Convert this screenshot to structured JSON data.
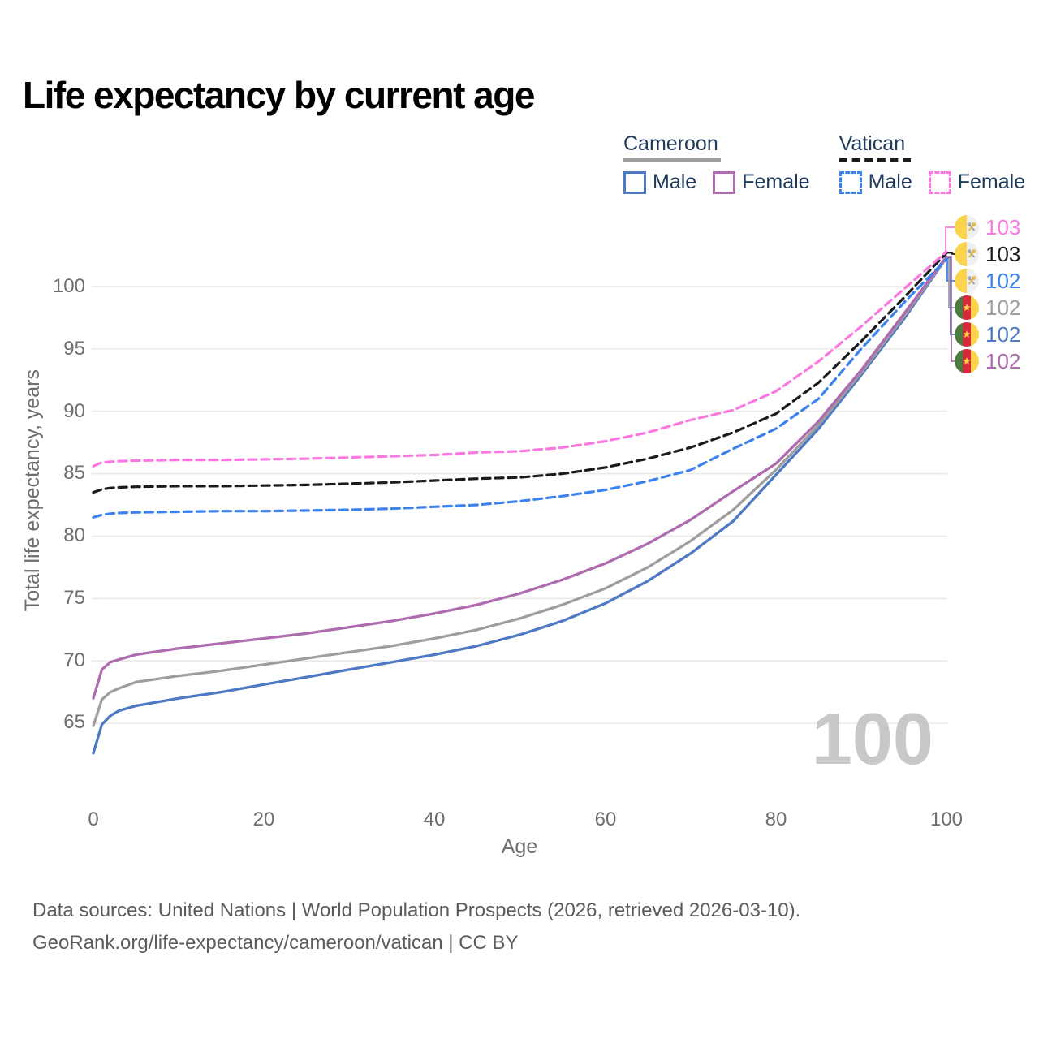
{
  "title": "Life expectancy by current age",
  "colors": {
    "title": "#1e3a5c",
    "text_dark": "#1e3a5c",
    "axis": "#6e6e6e",
    "grid": "#eaeaea",
    "footer": "#5c5c5c",
    "watermark": "#c8c8c8",
    "cameroon_male": "#4e79c4",
    "cameroon_female": "#af6bb0",
    "cameroon_combined": "#9e9e9e",
    "vatican_male": "#3b82f0",
    "vatican_female": "#fa78e0",
    "vatican_combined": "#1b1b1b",
    "flag_vatican_yellow": "#fbd44c",
    "flag_vatican_white": "#f0f0f0",
    "flag_cameroon_green": "#4d7a3f",
    "flag_cameroon_red": "#d6293e",
    "flag_cameroon_yellow": "#fcd349"
  },
  "legend": {
    "groups": [
      {
        "name": "Cameroon",
        "style": "solid",
        "items": [
          {
            "label": "Male"
          },
          {
            "label": "Female"
          }
        ]
      },
      {
        "name": "Vatican",
        "style": "dashed",
        "items": [
          {
            "label": "Male"
          },
          {
            "label": "Female"
          }
        ]
      }
    ]
  },
  "axes": {
    "y": {
      "title": "Total life expectancy, years",
      "ticks": [
        "100",
        "95",
        "90",
        "85",
        "80",
        "75",
        "70",
        "65"
      ]
    },
    "x": {
      "title": "Age",
      "ticks": [
        "0",
        "20",
        "40",
        "60",
        "80",
        "100"
      ]
    }
  },
  "end_labels": [
    {
      "series": "vatican_female",
      "flag": "vatican",
      "value": "103",
      "color": "#fa78e0"
    },
    {
      "series": "vatican_combined",
      "flag": "vatican",
      "value": "103",
      "color": "#1b1b1b"
    },
    {
      "series": "vatican_male",
      "flag": "vatican",
      "value": "102",
      "color": "#3b82f0"
    },
    {
      "series": "cameroon_combined",
      "flag": "cameroon",
      "value": "102",
      "color": "#9e9e9e"
    },
    {
      "series": "cameroon_male",
      "flag": "cameroon",
      "value": "102",
      "color": "#4e79c4"
    },
    {
      "series": "cameroon_female",
      "flag": "cameroon",
      "value": "102",
      "color": "#af6bb0"
    }
  ],
  "watermark": "100",
  "footer": {
    "line1": "Data sources: United Nations | World Population Prospects (2026, retrieved 2026-03-10).",
    "line2": "GeoRank.org/life-expectancy/cameroon/vatican | CC BY"
  },
  "chart_data": {
    "type": "line",
    "title": "Life expectancy by current age",
    "xlabel": "Age",
    "ylabel": "Total life expectancy, years",
    "xlim": [
      0,
      100
    ],
    "ylim": [
      61,
      104
    ],
    "grid": "horizontal",
    "legend_position": "top-right",
    "x": [
      0,
      1,
      2,
      3,
      5,
      10,
      15,
      20,
      25,
      30,
      35,
      40,
      45,
      50,
      55,
      60,
      65,
      70,
      75,
      80,
      85,
      90,
      95,
      100
    ],
    "series": [
      {
        "name": "cameroon_male",
        "country": "Cameroon",
        "sex": "Male",
        "color": "#4e79c4",
        "dash": false,
        "values": [
          62.6,
          64.9,
          65.6,
          66.0,
          66.4,
          67.0,
          67.5,
          68.1,
          68.7,
          69.3,
          69.9,
          70.5,
          71.2,
          72.1,
          73.2,
          74.6,
          76.4,
          78.6,
          81.2,
          84.9,
          88.6,
          92.9,
          97.4,
          102.3
        ]
      },
      {
        "name": "cameroon_combined",
        "country": "Cameroon",
        "sex": "Both",
        "color": "#9e9e9e",
        "dash": false,
        "values": [
          64.8,
          66.9,
          67.5,
          67.8,
          68.3,
          68.8,
          69.2,
          69.7,
          70.2,
          70.7,
          71.2,
          71.8,
          72.5,
          73.4,
          74.5,
          75.8,
          77.5,
          79.6,
          82.1,
          85.3,
          88.9,
          93.1,
          97.6,
          102.35
        ]
      },
      {
        "name": "cameroon_female",
        "country": "Cameroon",
        "sex": "Female",
        "color": "#af6bb0",
        "dash": false,
        "values": [
          67.0,
          69.3,
          69.9,
          70.1,
          70.5,
          71.0,
          71.4,
          71.8,
          72.2,
          72.7,
          73.2,
          73.8,
          74.5,
          75.4,
          76.5,
          77.8,
          79.4,
          81.3,
          83.6,
          85.8,
          89.2,
          93.3,
          97.8,
          102.4
        ]
      },
      {
        "name": "vatican_male",
        "country": "Vatican",
        "sex": "Male",
        "color": "#3b82f0",
        "dash": true,
        "values": [
          81.5,
          81.7,
          81.8,
          81.85,
          81.9,
          81.95,
          82.0,
          82.0,
          82.05,
          82.1,
          82.2,
          82.35,
          82.5,
          82.8,
          83.2,
          83.7,
          84.4,
          85.3,
          87.0,
          88.6,
          91.0,
          95.0,
          98.7,
          102.2
        ]
      },
      {
        "name": "vatican_combined",
        "country": "Vatican",
        "sex": "Both",
        "color": "#1b1b1b",
        "dash": true,
        "values": [
          83.5,
          83.75,
          83.85,
          83.9,
          83.95,
          84.0,
          84.0,
          84.05,
          84.1,
          84.2,
          84.3,
          84.45,
          84.6,
          84.7,
          85.0,
          85.5,
          86.2,
          87.1,
          88.3,
          89.8,
          92.3,
          95.6,
          99.1,
          102.7
        ]
      },
      {
        "name": "vatican_female",
        "country": "Vatican",
        "sex": "Female",
        "color": "#fa78e0",
        "dash": true,
        "values": [
          85.6,
          85.9,
          85.95,
          86.0,
          86.05,
          86.1,
          86.1,
          86.15,
          86.2,
          86.3,
          86.4,
          86.5,
          86.7,
          86.8,
          87.1,
          87.6,
          88.3,
          89.3,
          90.1,
          91.6,
          94.0,
          96.8,
          99.8,
          102.8
        ]
      }
    ]
  }
}
